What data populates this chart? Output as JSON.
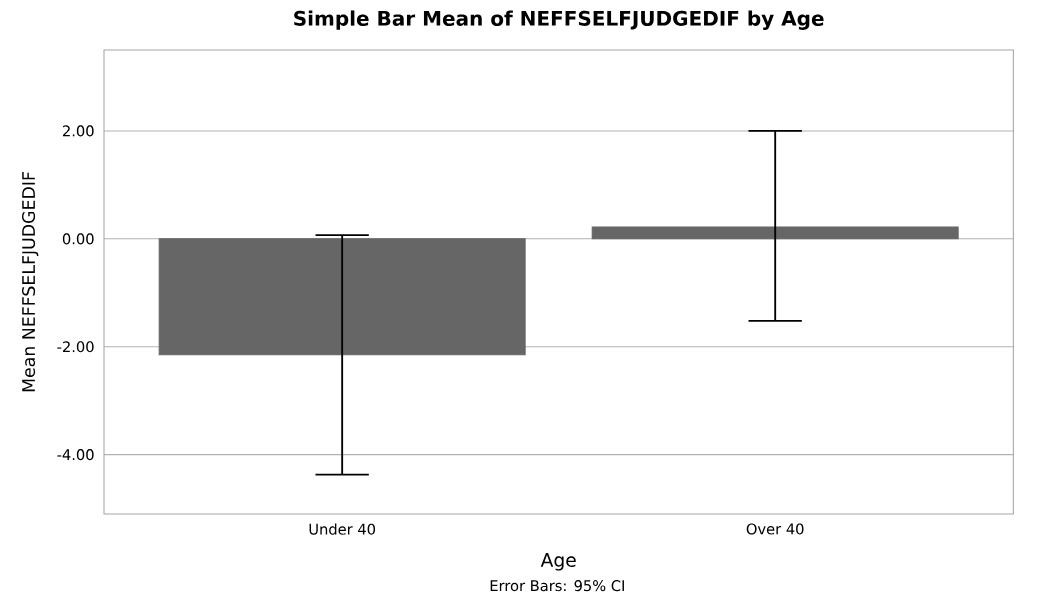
{
  "chart_data": {
    "type": "bar",
    "title": "Simple Bar Mean of NEFFSELFJUDGEDIF by Age",
    "xlabel": "Age",
    "ylabel": "Mean NEFFSELFJUDGEDIF",
    "categories": [
      "Under 40",
      "Over 40"
    ],
    "values": [
      -2.15,
      0.22
    ],
    "color": "#666666",
    "errors": [
      [
        -4.37,
        0.07
      ],
      [
        -1.52,
        2.0
      ]
    ],
    "ylim": [
      -5.1,
      3.5
    ],
    "yticks": [
      {
        "value": -4,
        "label": "-4.00"
      },
      {
        "value": -2,
        "label": "-2.00"
      },
      {
        "value": 0,
        "label": "0.00"
      },
      {
        "value": 2,
        "label": "2.00"
      }
    ],
    "grid": "y",
    "annotations": [
      "Error Bars: 95% CI"
    ]
  }
}
